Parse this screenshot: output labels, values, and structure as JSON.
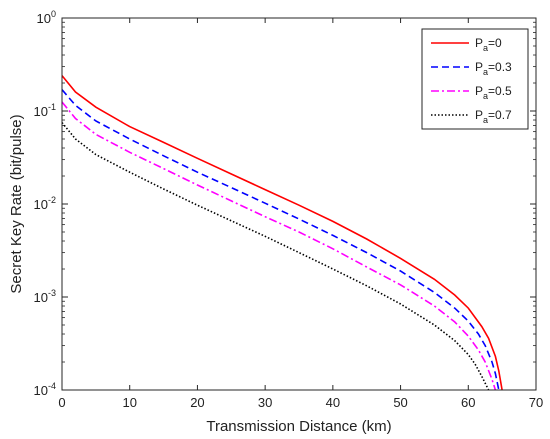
{
  "chart_data": {
    "type": "line",
    "xlabel": "Transmission Distance (km)",
    "ylabel": "Secret Key Rate (bit/pulse)",
    "xlim": [
      0,
      70
    ],
    "ylim": [
      0.0001,
      1
    ],
    "yscale": "log",
    "grid": false,
    "legend_position": "top-right",
    "x_ticks": [
      "0",
      "10",
      "20",
      "30",
      "40",
      "50",
      "60",
      "70"
    ],
    "y_ticks": [
      {
        "base": "10",
        "exp": "-4"
      },
      {
        "base": "10",
        "exp": "-3"
      },
      {
        "base": "10",
        "exp": "-2"
      },
      {
        "base": "10",
        "exp": "-1"
      },
      {
        "base": "10",
        "exp": "0"
      }
    ],
    "series": [
      {
        "name": "P_a=0",
        "legend_main": "P",
        "legend_sub": "a",
        "legend_rest": "=0",
        "color": "#ff0000",
        "dash": "",
        "points": [
          [
            0,
            0.24
          ],
          [
            2,
            0.16
          ],
          [
            5,
            0.11
          ],
          [
            10,
            0.068
          ],
          [
            15,
            0.046
          ],
          [
            20,
            0.031
          ],
          [
            25,
            0.021
          ],
          [
            30,
            0.0143
          ],
          [
            35,
            0.0097
          ],
          [
            40,
            0.0065
          ],
          [
            45,
            0.0042
          ],
          [
            50,
            0.0026
          ],
          [
            55,
            0.00155
          ],
          [
            58,
            0.00105
          ],
          [
            60,
            0.00076
          ],
          [
            62,
            0.00048
          ],
          [
            63,
            0.00036
          ],
          [
            64,
            0.00023
          ],
          [
            64.5,
            0.00016
          ],
          [
            65,
            0.0001
          ]
        ]
      },
      {
        "name": "P_a=0.3",
        "legend_main": "P",
        "legend_sub": "a",
        "legend_rest": "=0.3",
        "color": "#0000ff",
        "dash": "7,4",
        "points": [
          [
            0,
            0.17
          ],
          [
            2,
            0.115
          ],
          [
            5,
            0.078
          ],
          [
            10,
            0.05
          ],
          [
            15,
            0.033
          ],
          [
            20,
            0.022
          ],
          [
            25,
            0.015
          ],
          [
            30,
            0.0102
          ],
          [
            35,
            0.0069
          ],
          [
            40,
            0.0046
          ],
          [
            45,
            0.003
          ],
          [
            50,
            0.0019
          ],
          [
            55,
            0.00112
          ],
          [
            58,
            0.00076
          ],
          [
            60,
            0.00055
          ],
          [
            61.5,
            0.0004
          ],
          [
            62.5,
            0.0003
          ],
          [
            63.5,
            0.0002
          ],
          [
            64,
            0.00015
          ],
          [
            64.5,
            0.0001
          ]
        ]
      },
      {
        "name": "P_a=0.5",
        "legend_main": "P",
        "legend_sub": "a",
        "legend_rest": "=0.5",
        "color": "#ff00ff",
        "dash": "8,3,2,3",
        "points": [
          [
            0,
            0.125
          ],
          [
            2,
            0.083
          ],
          [
            5,
            0.056
          ],
          [
            10,
            0.036
          ],
          [
            15,
            0.024
          ],
          [
            20,
            0.016
          ],
          [
            25,
            0.0108
          ],
          [
            30,
            0.0073
          ],
          [
            35,
            0.005
          ],
          [
            40,
            0.0033
          ],
          [
            45,
            0.0021
          ],
          [
            50,
            0.00135
          ],
          [
            55,
            0.0008
          ],
          [
            58,
            0.00054
          ],
          [
            60,
            0.00038
          ],
          [
            61.5,
            0.00027
          ],
          [
            62.5,
            0.0002
          ],
          [
            63.5,
            0.00013
          ],
          [
            64,
            0.0001
          ]
        ]
      },
      {
        "name": "P_a=0.7",
        "legend_main": "P",
        "legend_sub": "a",
        "legend_rest": "=0.7",
        "color": "#000000",
        "dash": "1.5,2",
        "points": [
          [
            0,
            0.075
          ],
          [
            2,
            0.05
          ],
          [
            5,
            0.034
          ],
          [
            10,
            0.022
          ],
          [
            15,
            0.0145
          ],
          [
            20,
            0.0097
          ],
          [
            25,
            0.0066
          ],
          [
            30,
            0.0045
          ],
          [
            35,
            0.003
          ],
          [
            40,
            0.002
          ],
          [
            45,
            0.00132
          ],
          [
            50,
            0.00084
          ],
          [
            55,
            0.0005
          ],
          [
            58,
            0.00034
          ],
          [
            60,
            0.00024
          ],
          [
            61,
            0.00019
          ],
          [
            62,
            0.00014
          ],
          [
            63,
            0.0001
          ]
        ]
      }
    ]
  }
}
